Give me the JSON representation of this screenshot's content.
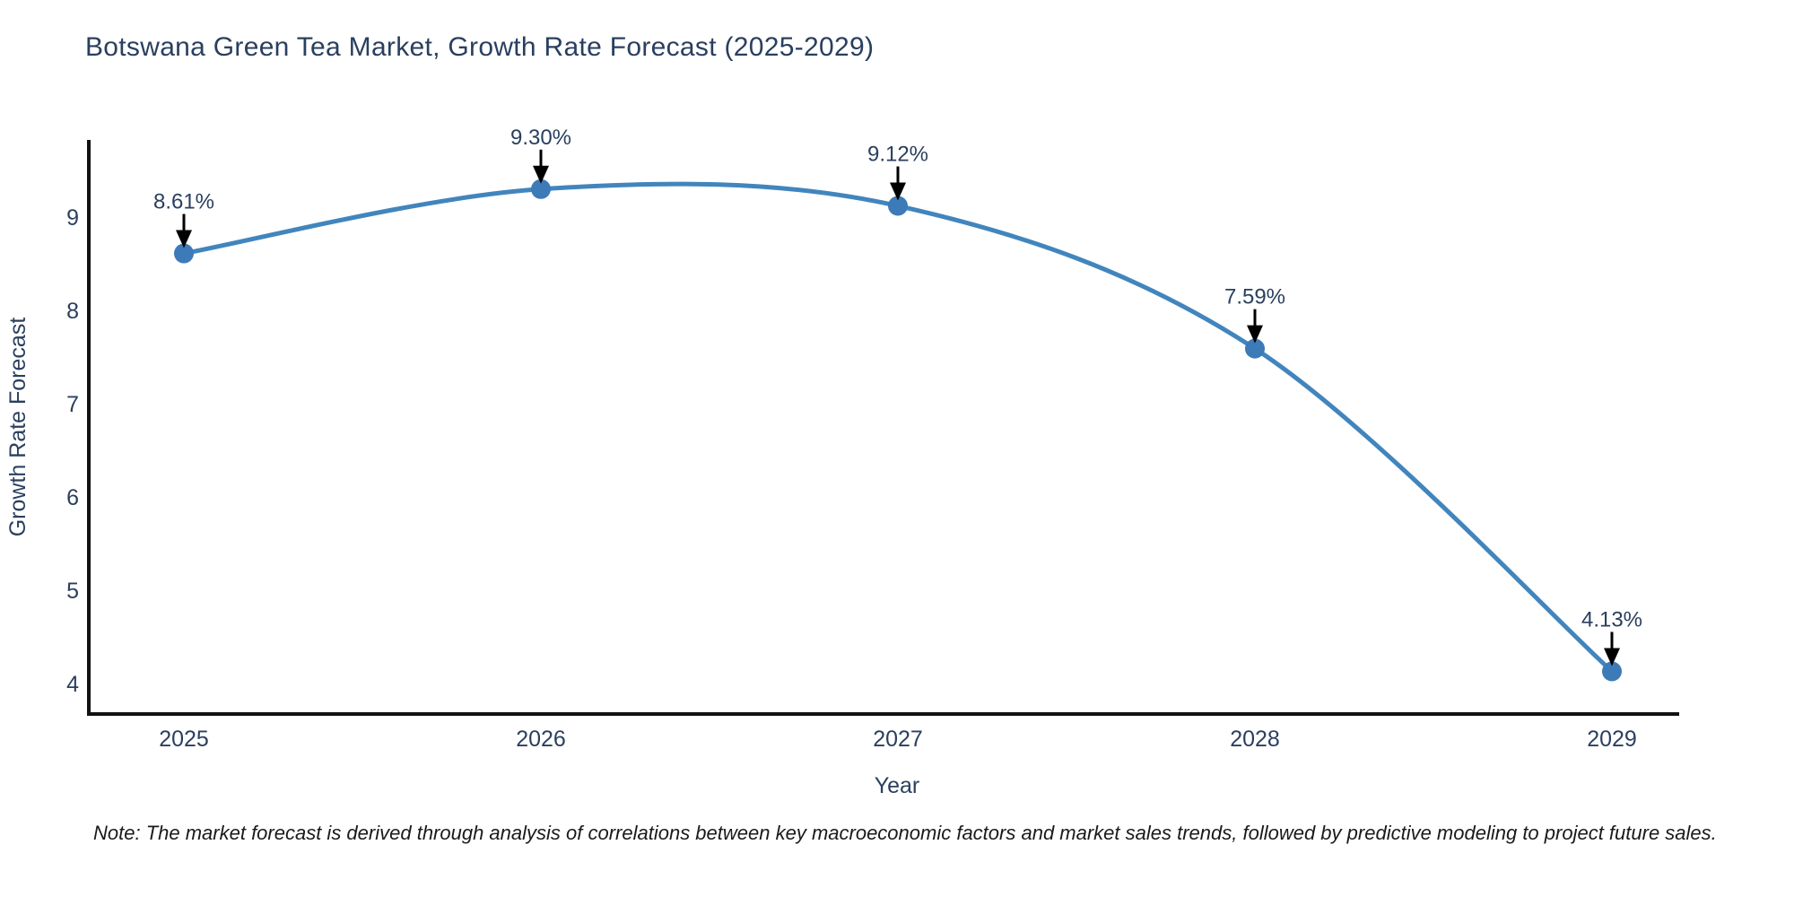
{
  "chart_data": {
    "type": "line",
    "title": "Botswana Green Tea Market, Growth Rate Forecast (2025-2029)",
    "xlabel": "Year",
    "ylabel": "Growth Rate Forecast",
    "categories": [
      "2025",
      "2026",
      "2027",
      "2028",
      "2029"
    ],
    "series": [
      {
        "name": "Growth Rate Forecast",
        "values": [
          8.61,
          9.3,
          9.12,
          7.59,
          4.13
        ]
      }
    ],
    "point_labels": [
      "8.61%",
      "9.30%",
      "9.12%",
      "7.59%",
      "4.13%"
    ],
    "yticks": [
      4,
      5,
      6,
      7,
      8,
      9
    ],
    "ylim": [
      3.65,
      9.85
    ],
    "grid": false,
    "legend_position": "none",
    "line_style": "spline",
    "colors": {
      "line": "#4285bd",
      "marker": "#3d7ab8",
      "text": "#2a3f5f",
      "axis": "#111111",
      "arrow": "#000000",
      "background": "#ffffff"
    },
    "note": "Note: The market forecast is derived through analysis of correlations between key macroeconomic factors and market sales trends, followed by predictive modeling to project future sales."
  }
}
